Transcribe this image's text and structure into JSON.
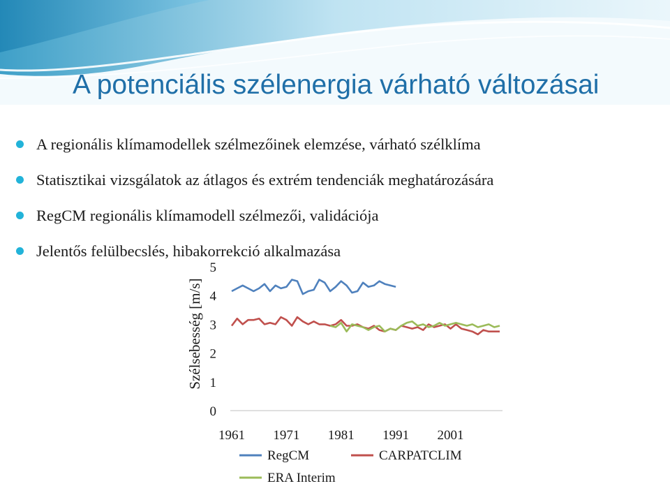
{
  "slide": {
    "title": "A potenciális szélenergia várható változásai",
    "bullets": [
      "A regionális klímamodellek szélmezőinek elemzése, várható szélklíma",
      "Statisztikai vizsgálatok az átlagos és extrém  tendenciák meghatározására",
      "RegCM regionális klímamodell szélmezői, validációja",
      "Jelentős felülbecslés, hibakorrekció alkalmazása"
    ]
  },
  "colors": {
    "title": "#1f6fa8",
    "bullet": "#22b3d9",
    "banner": "#3fa0c8"
  },
  "chart_data": {
    "type": "line",
    "ylabel": "Szélsebesség [m/s]",
    "ylim": [
      0,
      5
    ],
    "yticks": [
      0,
      1,
      2,
      3,
      4,
      5
    ],
    "xlim": [
      1961,
      2010
    ],
    "xticks": [
      1961,
      1971,
      1981,
      1991,
      2001
    ],
    "grid": false,
    "legend_position": "bottom",
    "series": [
      {
        "name": "RegCM",
        "color": "#4f81bd",
        "x": [
          1961,
          1962,
          1963,
          1964,
          1965,
          1966,
          1967,
          1968,
          1969,
          1970,
          1971,
          1972,
          1973,
          1974,
          1975,
          1976,
          1977,
          1978,
          1979,
          1980,
          1981,
          1982,
          1983,
          1984,
          1985,
          1986,
          1987,
          1988,
          1989,
          1990,
          1991
        ],
        "y": [
          4.15,
          4.25,
          4.35,
          4.25,
          4.15,
          4.25,
          4.4,
          4.15,
          4.35,
          4.25,
          4.3,
          4.55,
          4.5,
          4.05,
          4.15,
          4.2,
          4.55,
          4.45,
          4.15,
          4.3,
          4.5,
          4.35,
          4.1,
          4.15,
          4.45,
          4.3,
          4.35,
          4.5,
          4.4,
          4.35,
          4.3
        ]
      },
      {
        "name": "CARPATCLIM",
        "color": "#c0504d",
        "x": [
          1961,
          1962,
          1963,
          1964,
          1965,
          1966,
          1967,
          1968,
          1969,
          1970,
          1971,
          1972,
          1973,
          1974,
          1975,
          1976,
          1977,
          1978,
          1979,
          1980,
          1981,
          1982,
          1983,
          1984,
          1985,
          1986,
          1987,
          1988,
          1989,
          1990,
          1991,
          1992,
          1993,
          1994,
          1995,
          1996,
          1997,
          1998,
          1999,
          2000,
          2001,
          2002,
          2003,
          2004,
          2005,
          2006,
          2007,
          2008,
          2009,
          2010
        ],
        "y": [
          2.95,
          3.2,
          3.0,
          3.15,
          3.15,
          3.2,
          3.0,
          3.05,
          3.0,
          3.25,
          3.15,
          2.95,
          3.25,
          3.1,
          3.0,
          3.1,
          3.0,
          3.0,
          2.95,
          3.0,
          3.15,
          2.95,
          2.95,
          3.0,
          2.9,
          2.85,
          2.95,
          2.8,
          2.75,
          2.85,
          2.8,
          2.95,
          2.9,
          2.85,
          2.9,
          2.8,
          3.0,
          2.9,
          2.95,
          3.0,
          2.85,
          3.0,
          2.85,
          2.8,
          2.75,
          2.65,
          2.8,
          2.75,
          2.75,
          2.75
        ]
      },
      {
        "name": "ERA Interim",
        "color": "#9bbb59",
        "x": [
          1979,
          1980,
          1981,
          1982,
          1983,
          1984,
          1985,
          1986,
          1987,
          1988,
          1989,
          1990,
          1991,
          1992,
          1993,
          1994,
          1995,
          1996,
          1997,
          1998,
          1999,
          2000,
          2001,
          2002,
          2003,
          2004,
          2005,
          2006,
          2007,
          2008,
          2009,
          2010
        ],
        "y": [
          2.95,
          2.9,
          3.05,
          2.75,
          3.0,
          2.95,
          2.9,
          2.8,
          2.9,
          2.95,
          2.75,
          2.85,
          2.8,
          2.95,
          3.05,
          3.1,
          2.95,
          3.0,
          2.9,
          2.95,
          3.05,
          2.95,
          3.0,
          3.05,
          3.0,
          2.95,
          3.0,
          2.9,
          2.95,
          3.0,
          2.9,
          2.95
        ]
      }
    ]
  }
}
